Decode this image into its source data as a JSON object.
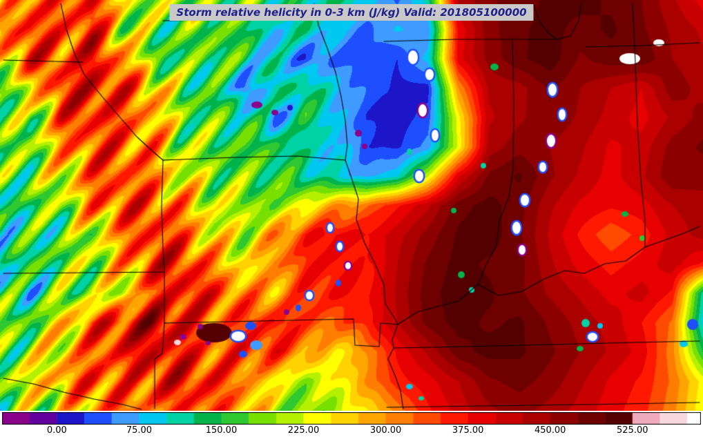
{
  "title": {
    "text": "Storm relative helicity in 0-3 km (J/kg) Valid: 201805100000",
    "bg_color": "#c9c9c9",
    "text_color": "#20208c"
  },
  "colorbar": {
    "ticks": [
      {
        "value": 0,
        "label": "0.00"
      },
      {
        "value": 75,
        "label": "75.00"
      },
      {
        "value": 150,
        "label": "150.00"
      },
      {
        "value": 225,
        "label": "225.00"
      },
      {
        "value": 300,
        "label": "300.00"
      },
      {
        "value": 375,
        "label": "375.00"
      },
      {
        "value": 450,
        "label": "450.00"
      },
      {
        "value": 525,
        "label": "525.00"
      }
    ]
  },
  "chart_data": {
    "type": "heatmap",
    "title": "Storm relative helicity in 0-3 km (J/kg)",
    "valid": "201805100000",
    "units": "J/kg",
    "vmin": -50,
    "vmax": 587.5,
    "level_step": 25,
    "levels": [
      -50,
      -25,
      0,
      25,
      50,
      75,
      100,
      125,
      150,
      175,
      200,
      225,
      250,
      275,
      300,
      325,
      350,
      375,
      400,
      425,
      450,
      475,
      500,
      525,
      550,
      575,
      600
    ],
    "colors": [
      "#8b008b",
      "#62009e",
      "#1c16c8",
      "#1e4fff",
      "#3f9bff",
      "#00c8f0",
      "#00d2a5",
      "#00b44b",
      "#30c830",
      "#78e000",
      "#b4f000",
      "#ffff00",
      "#ffd200",
      "#ffa500",
      "#ff7d00",
      "#ff4b00",
      "#ff1900",
      "#e60000",
      "#c80000",
      "#aa0000",
      "#8c0000",
      "#6e0000",
      "#550000",
      "#f0aabe",
      "#f9d7e1",
      "#ffffff"
    ],
    "grid": {
      "cols": 24,
      "rows": 15,
      "x_range": [
        0,
        1018
      ],
      "y_range": [
        0,
        595
      ],
      "values": [
        [
          230,
          340,
          300,
          350,
          210,
          170,
          200,
          160,
          200,
          150,
          120,
          140,
          90,
          45,
          110,
          430,
          470,
          490,
          505,
          510,
          495,
          475,
          430,
          390
        ],
        [
          300,
          360,
          310,
          355,
          200,
          150,
          145,
          185,
          155,
          95,
          135,
          85,
          45,
          80,
          55,
          380,
          465,
          495,
          510,
          490,
          505,
          480,
          445,
          420
        ],
        [
          240,
          370,
          320,
          385,
          300,
          160,
          145,
          180,
          140,
          90,
          50,
          45,
          38,
          25,
          85,
          390,
          460,
          495,
          515,
          470,
          490,
          495,
          450,
          430
        ],
        [
          160,
          240,
          385,
          395,
          365,
          295,
          165,
          150,
          40,
          110,
          130,
          85,
          40,
          20,
          15,
          300,
          430,
          440,
          480,
          450,
          425,
          400,
          465,
          440
        ],
        [
          200,
          170,
          370,
          390,
          365,
          310,
          195,
          155,
          140,
          45,
          135,
          80,
          25,
          12,
          35,
          240,
          420,
          445,
          470,
          445,
          415,
          390,
          430,
          460
        ],
        [
          160,
          200,
          310,
          380,
          370,
          320,
          210,
          165,
          150,
          140,
          90,
          85,
          30,
          20,
          60,
          230,
          435,
          465,
          450,
          430,
          395,
          410,
          460,
          480
        ],
        [
          155,
          195,
          250,
          365,
          375,
          330,
          240,
          190,
          160,
          145,
          115,
          90,
          65,
          95,
          220,
          395,
          480,
          505,
          455,
          420,
          390,
          420,
          470,
          460
        ],
        [
          120,
          165,
          205,
          320,
          370,
          360,
          300,
          215,
          195,
          170,
          235,
          290,
          320,
          370,
          420,
          490,
          510,
          485,
          430,
          395,
          380,
          390,
          425,
          440
        ],
        [
          150,
          125,
          165,
          200,
          310,
          365,
          330,
          245,
          215,
          295,
          360,
          390,
          375,
          415,
          460,
          505,
          515,
          480,
          420,
          370,
          330,
          360,
          410,
          435
        ],
        [
          95,
          140,
          155,
          190,
          250,
          360,
          370,
          300,
          240,
          310,
          370,
          385,
          365,
          425,
          480,
          510,
          495,
          485,
          430,
          390,
          365,
          385,
          415,
          370
        ],
        [
          140,
          100,
          150,
          165,
          195,
          320,
          375,
          360,
          315,
          300,
          365,
          385,
          370,
          430,
          490,
          515,
          505,
          480,
          445,
          420,
          390,
          410,
          370,
          115
        ],
        [
          185,
          150,
          230,
          310,
          355,
          420,
          370,
          320,
          360,
          385,
          365,
          330,
          370,
          425,
          485,
          510,
          495,
          505,
          470,
          440,
          415,
          375,
          320,
          90
        ],
        [
          160,
          190,
          245,
          300,
          360,
          385,
          365,
          330,
          360,
          370,
          310,
          250,
          300,
          380,
          430,
          490,
          510,
          505,
          480,
          450,
          420,
          390,
          310,
          150
        ],
        [
          190,
          240,
          295,
          355,
          320,
          365,
          385,
          360,
          310,
          245,
          200,
          240,
          300,
          365,
          390,
          425,
          470,
          485,
          465,
          430,
          395,
          370,
          320,
          240
        ],
        [
          165,
          200,
          245,
          310,
          355,
          320,
          360,
          330,
          300,
          210,
          170,
          205,
          250,
          310,
          370,
          410,
          445,
          460,
          440,
          415,
          385,
          360,
          310,
          230
        ]
      ]
    },
    "streaks": {
      "fade_start_x": 260,
      "fade_end_x": 560,
      "components": [
        {
          "amp": 60,
          "kx": 0.72,
          "ky": 0.69,
          "scale": 6.7
        },
        {
          "amp": 35,
          "kx": 0.95,
          "ky": 0.31,
          "scale": 10.5
        },
        {
          "amp": 30,
          "type": "cell",
          "sx": 97,
          "sy": 71
        }
      ]
    },
    "spots_format": "[x, y, rx, ry, value, ringValue|null]",
    "spots": [
      [
        598,
        83,
        7,
        10,
        580,
        30
      ],
      [
        622,
        108,
        6,
        8,
        580,
        30
      ],
      [
        612,
        160,
        6,
        9,
        580,
        -40
      ],
      [
        630,
        196,
        5,
        8,
        580,
        30
      ],
      [
        607,
        255,
        6,
        8,
        580,
        30
      ],
      [
        593,
        220,
        4,
        5,
        110,
        null
      ],
      [
        800,
        130,
        6,
        9,
        580,
        30
      ],
      [
        814,
        166,
        5,
        8,
        580,
        30
      ],
      [
        798,
        204,
        6,
        9,
        580,
        -40
      ],
      [
        786,
        242,
        5,
        7,
        580,
        30
      ],
      [
        760,
        290,
        6,
        8,
        580,
        30
      ],
      [
        748,
        330,
        6,
        9,
        580,
        30
      ],
      [
        756,
        362,
        5,
        7,
        580,
        -40
      ],
      [
        912,
        85,
        15,
        8,
        578,
        null
      ],
      [
        954,
        62,
        8,
        5,
        578,
        null
      ],
      [
        372,
        152,
        8,
        5,
        -40,
        null
      ],
      [
        398,
        163,
        5,
        4,
        -40,
        null
      ],
      [
        420,
        156,
        4,
        4,
        20,
        null
      ],
      [
        523,
        12,
        4,
        3,
        -40,
        null
      ],
      [
        519,
        193,
        5,
        5,
        -40,
        null
      ],
      [
        528,
        212,
        4,
        4,
        -40,
        null
      ],
      [
        478,
        330,
        4,
        6,
        580,
        30
      ],
      [
        492,
        357,
        4,
        6,
        580,
        30
      ],
      [
        504,
        385,
        4,
        5,
        580,
        -40
      ],
      [
        490,
        410,
        4,
        5,
        30,
        null
      ],
      [
        448,
        428,
        5,
        6,
        580,
        30
      ],
      [
        432,
        446,
        4,
        5,
        30,
        null
      ],
      [
        415,
        452,
        4,
        4,
        -40,
        null
      ],
      [
        310,
        482,
        26,
        14,
        505,
        null
      ],
      [
        345,
        487,
        10,
        7,
        580,
        30
      ],
      [
        363,
        472,
        8,
        6,
        35,
        null
      ],
      [
        371,
        500,
        9,
        7,
        60,
        null
      ],
      [
        352,
        513,
        6,
        5,
        30,
        null
      ],
      [
        290,
        473,
        4,
        4,
        -40,
        null
      ],
      [
        301,
        497,
        4,
        3,
        -40,
        null
      ],
      [
        265,
        488,
        5,
        4,
        -40,
        null
      ],
      [
        257,
        496,
        5,
        4,
        555,
        null
      ],
      [
        668,
        398,
        5,
        5,
        130,
        null
      ],
      [
        683,
        420,
        4,
        4,
        110,
        null
      ],
      [
        716,
        97,
        6,
        5,
        140,
        null
      ],
      [
        700,
        240,
        4,
        4,
        120,
        null
      ],
      [
        657,
        305,
        4,
        4,
        130,
        null
      ],
      [
        848,
        468,
        6,
        6,
        120,
        null
      ],
      [
        858,
        488,
        7,
        6,
        580,
        30
      ],
      [
        869,
        472,
        4,
        4,
        85,
        null
      ],
      [
        840,
        505,
        5,
        4,
        140,
        null
      ],
      [
        905,
        310,
        5,
        4,
        130,
        null
      ],
      [
        930,
        345,
        4,
        4,
        150,
        null
      ],
      [
        1003,
        470,
        8,
        8,
        40,
        null
      ],
      [
        990,
        498,
        6,
        5,
        85,
        null
      ],
      [
        593,
        560,
        5,
        4,
        90,
        null
      ],
      [
        610,
        577,
        4,
        3,
        120,
        null
      ]
    ],
    "boundaries": [
      [
        [
          88,
          5
        ],
        [
          96,
          42
        ],
        [
          108,
          78
        ],
        [
          122,
          108
        ],
        [
          148,
          140
        ],
        [
          172,
          168
        ],
        [
          198,
          198
        ],
        [
          222,
          220
        ],
        [
          236,
          232
        ]
      ],
      [
        [
          5,
          87
        ],
        [
          120,
          90
        ]
      ],
      [
        [
          236,
          30
        ],
        [
          350,
          28
        ],
        [
          458,
          27
        ]
      ],
      [
        [
          455,
          5
        ],
        [
          461,
          36
        ],
        [
          474,
          70
        ],
        [
          486,
          105
        ],
        [
          494,
          140
        ],
        [
          500,
          175
        ],
        [
          503,
          210
        ],
        [
          500,
          232
        ],
        [
          509,
          258
        ],
        [
          519,
          288
        ],
        [
          516,
          318
        ],
        [
          528,
          352
        ],
        [
          543,
          382
        ],
        [
          556,
          412
        ],
        [
          558,
          440
        ],
        [
          572,
          462
        ],
        [
          576,
          470
        ]
      ],
      [
        [
          236,
          232
        ],
        [
          340,
          228
        ],
        [
          430,
          226
        ],
        [
          500,
          232
        ]
      ],
      [
        [
          236,
          232
        ],
        [
          234,
          300
        ],
        [
          236,
          360
        ],
        [
          238,
          392
        ],
        [
          238,
          468
        ]
      ],
      [
        [
          5,
          396
        ],
        [
          120,
          395
        ],
        [
          238,
          394
        ]
      ],
      [
        [
          238,
          468
        ],
        [
          330,
          466
        ],
        [
          420,
          464
        ],
        [
          512,
          462
        ],
        [
          514,
          500
        ],
        [
          549,
          502
        ],
        [
          551,
          468
        ],
        [
          576,
          470
        ]
      ],
      [
        [
          238,
          468
        ],
        [
          235,
          512
        ],
        [
          224,
          520
        ],
        [
          224,
          592
        ]
      ],
      [
        [
          556,
          60
        ],
        [
          660,
          57
        ],
        [
          742,
          57
        ],
        [
          806,
          57
        ]
      ],
      [
        [
          742,
          57
        ],
        [
          744,
          150
        ],
        [
          743,
          245
        ],
        [
          737,
          285
        ],
        [
          723,
          320
        ],
        [
          719,
          355
        ],
        [
          703,
          385
        ],
        [
          692,
          412
        ]
      ],
      [
        [
          692,
          412
        ],
        [
          664,
          436
        ],
        [
          634,
          444
        ],
        [
          604,
          452
        ],
        [
          576,
          470
        ]
      ],
      [
        [
          692,
          412
        ],
        [
          722,
          428
        ],
        [
          756,
          422
        ],
        [
          788,
          404
        ],
        [
          818,
          392
        ],
        [
          846,
          396
        ],
        [
          876,
          382
        ],
        [
          906,
          378
        ],
        [
          934,
          358
        ],
        [
          962,
          348
        ],
        [
          990,
          338
        ],
        [
          1013,
          328
        ]
      ],
      [
        [
          570,
          504
        ],
        [
          680,
          502
        ],
        [
          800,
          499
        ],
        [
          920,
          496
        ],
        [
          1013,
          494
        ]
      ],
      [
        [
          560,
          590
        ],
        [
          700,
          588
        ],
        [
          850,
          586
        ],
        [
          1013,
          583
        ]
      ],
      [
        [
          576,
          470
        ],
        [
          568,
          492
        ],
        [
          570,
          504
        ],
        [
          562,
          520
        ],
        [
          572,
          544
        ],
        [
          580,
          566
        ],
        [
          584,
          593
        ]
      ],
      [
        [
          916,
          5
        ],
        [
          920,
          90
        ],
        [
          923,
          180
        ],
        [
          928,
          260
        ],
        [
          934,
          320
        ],
        [
          934,
          358
        ]
      ],
      [
        [
          848,
          68
        ],
        [
          930,
          66
        ],
        [
          1013,
          62
        ]
      ],
      [
        [
          772,
          5
        ],
        [
          780,
          28
        ],
        [
          792,
          46
        ],
        [
          806,
          57
        ],
        [
          826,
          52
        ],
        [
          838,
          30
        ],
        [
          842,
          5
        ]
      ],
      [
        [
          5,
          548
        ],
        [
          48,
          556
        ],
        [
          92,
          568
        ],
        [
          136,
          578
        ],
        [
          178,
          586
        ],
        [
          205,
          593
        ]
      ]
    ]
  }
}
